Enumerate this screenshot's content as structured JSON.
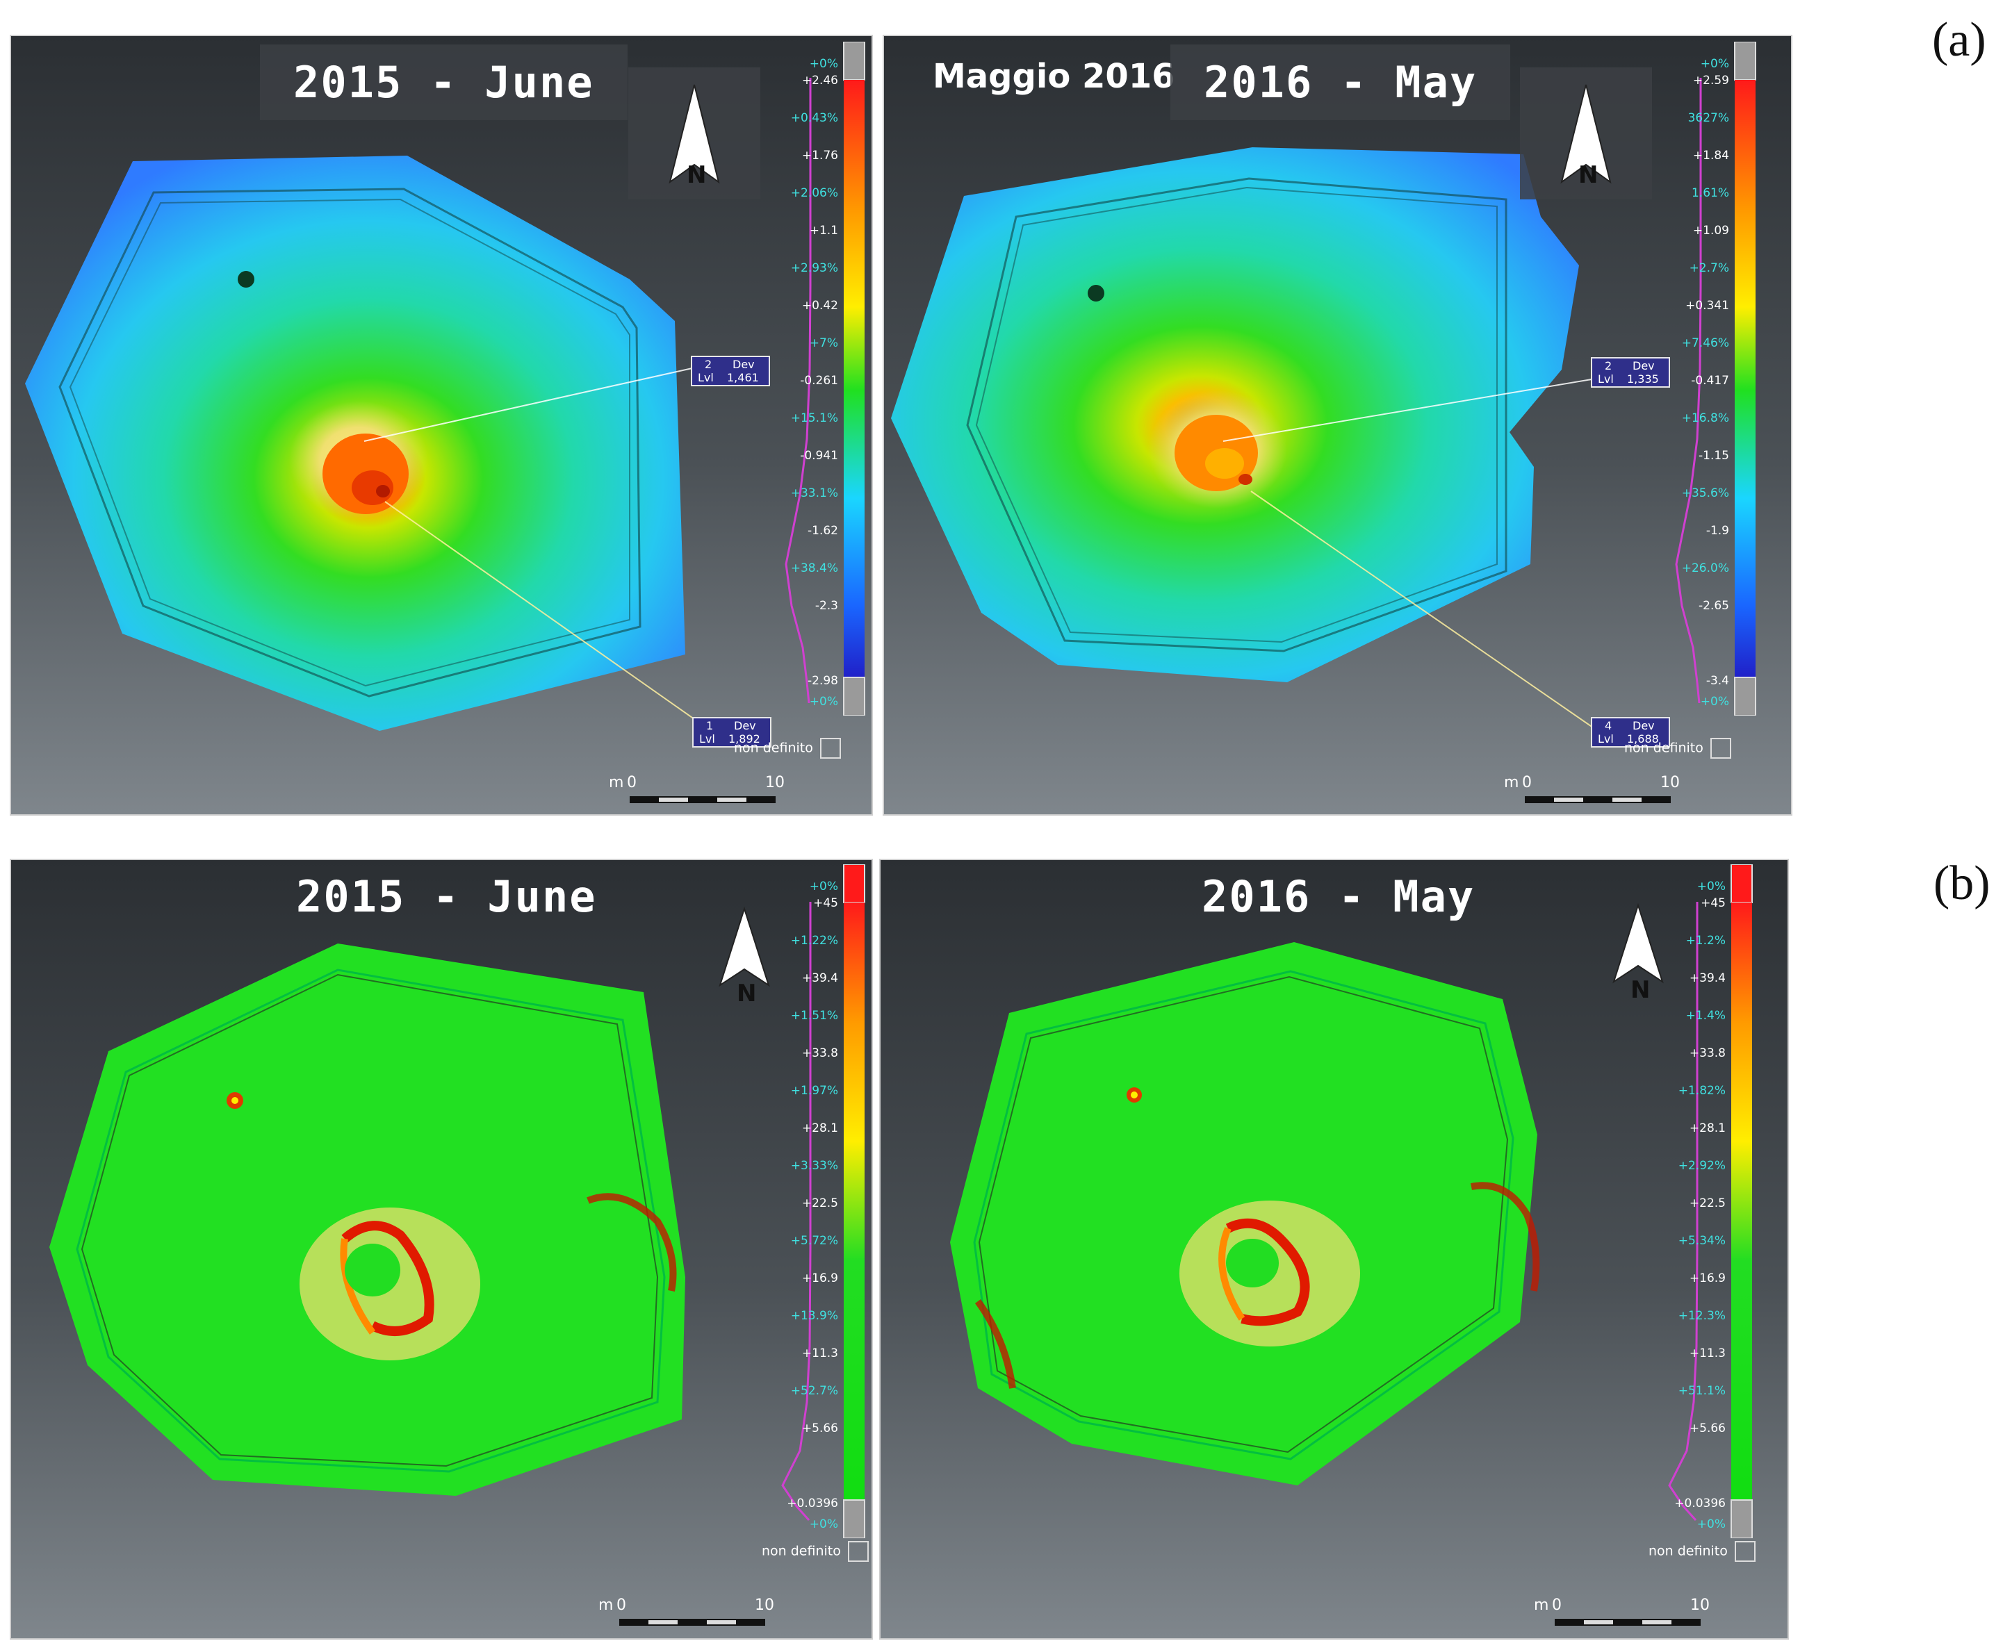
{
  "figure_labels": {
    "a": "(a)",
    "b": "(b)"
  },
  "north_letter": "N",
  "not_defined_label": "non definito",
  "scale": {
    "m_label": "m",
    "zero": "0",
    "ten": "10"
  },
  "row_a": {
    "left": {
      "title": "2015 - June",
      "percents": [
        "+0%",
        "+0.43%",
        "+2.06%",
        "+2.93%",
        "+7%",
        "+15.1%",
        "+33.1%",
        "+38.4%",
        "+0%"
      ],
      "values": [
        "+2.46",
        "+1.76",
        "+1.1",
        "+0.42",
        "-0.261",
        "-0.941",
        "-1.62",
        "-2.3",
        "-2.98"
      ],
      "tags": [
        {
          "num": "2",
          "dev": "Dev",
          "lvl": "Lvl",
          "val": "1,461"
        },
        {
          "num": "1",
          "dev": "Dev",
          "lvl": "Lvl",
          "val": "1,892"
        }
      ]
    },
    "right": {
      "subtitle": "Maggio 2016",
      "title": "2016 - May",
      "percents": [
        "+0%",
        "3627%",
        "1.61%",
        "+2.7%",
        "+7.46%",
        "+16.8%",
        "+35.6%",
        "+26.0%",
        "+0%"
      ],
      "values": [
        "+2.59",
        "+1.84",
        "+1.09",
        "+0.341",
        "-0.417",
        "-1.15",
        "-1.9",
        "-2.65",
        "-3.4"
      ],
      "tags": [
        {
          "num": "2",
          "dev": "Dev",
          "lvl": "Lvl",
          "val": "1,335"
        },
        {
          "num": "4",
          "dev": "Dev",
          "lvl": "Lvl",
          "val": "1,688"
        }
      ]
    }
  },
  "row_b": {
    "left": {
      "title": "2015 - June",
      "percents": [
        "+0%",
        "+1.22%",
        "+1.51%",
        "+1.97%",
        "+3.33%",
        "+5.72%",
        "+13.9%",
        "+52.7%",
        "+0%"
      ],
      "values": [
        "+45",
        "+39.4",
        "+33.8",
        "+28.1",
        "+22.5",
        "+16.9",
        "+11.3",
        "+5.66",
        "+0.0396"
      ]
    },
    "right": {
      "title": "2016 - May",
      "percents": [
        "+0%",
        "+1.2%",
        "+1.4%",
        "+1.82%",
        "+2.92%",
        "+5.34%",
        "+12.3%",
        "+51.1%",
        "+0%"
      ],
      "values": [
        "+45",
        "+39.4",
        "+33.8",
        "+28.1",
        "+22.5",
        "+16.9",
        "+11.3",
        "+5.66",
        "+0.0396"
      ]
    }
  },
  "colors": {
    "ramp_a": [
      "#ff1a1a",
      "#ff9a00",
      "#ffee00",
      "#20e020",
      "#1ad6ff",
      "#1a66ff",
      "#2020c8"
    ],
    "ramp_b": [
      "#ff1a1a",
      "#ff9a00",
      "#ffee00",
      "#22dd22",
      "#11dd11"
    ],
    "histogram": "#d040d0"
  }
}
